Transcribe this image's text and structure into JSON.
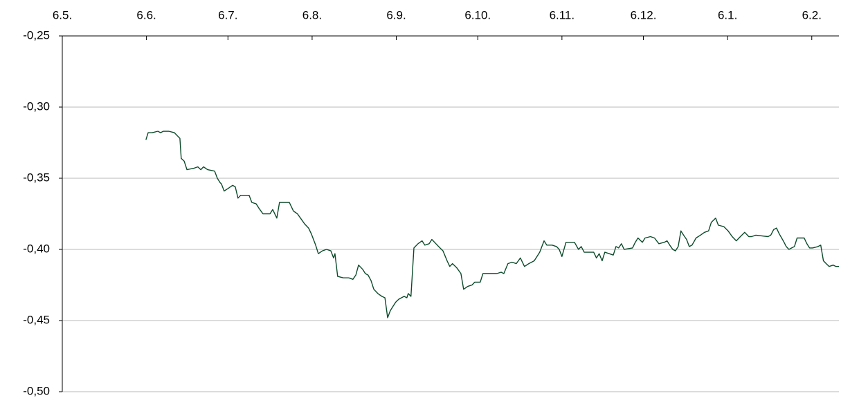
{
  "chart_data": {
    "type": "line",
    "x": [
      30.8,
      31.6,
      33.1,
      35.2,
      36.2,
      37.2,
      39.2,
      41.3,
      42.3,
      43.3,
      43.8,
      44.9,
      45.9,
      48.4,
      49.9,
      51.0,
      52.0,
      53.5,
      56.1,
      57.1,
      58.1,
      58.6,
      59.6,
      61.2,
      62.7,
      63.7,
      64.7,
      65.7,
      68.8,
      69.8,
      71.4,
      72.4,
      73.9,
      76.5,
      77.5,
      79.0,
      80.0,
      83.6,
      85.1,
      86.6,
      87.7,
      89.2,
      90.7,
      91.7,
      93.3,
      94.3,
      95.8,
      97.3,
      98.9,
      99.9,
      100.4,
      101.4,
      103.5,
      105.5,
      107.0,
      108.1,
      109.1,
      110.6,
      111.6,
      112.6,
      113.7,
      114.7,
      116.2,
      117.7,
      118.8,
      119.8,
      120.8,
      121.8,
      122.8,
      123.9,
      124.9,
      125.9,
      126.9,
      127.4,
      128.4,
      129.5,
      131.0,
      132.5,
      133.5,
      135.1,
      136.1,
      137.6,
      139.1,
      140.2,
      141.7,
      142.7,
      143.7,
      145.3,
      146.8,
      147.8,
      149.3,
      150.9,
      151.9,
      153.9,
      154.9,
      156.5,
      160.0,
      161.6,
      162.6,
      164.1,
      165.6,
      167.2,
      168.7,
      170.2,
      171.8,
      173.8,
      175.8,
      177.4,
      178.4,
      180.4,
      182.0,
      183.0,
      184.0,
      185.5,
      188.6,
      190.1,
      191.1,
      192.2,
      195.7,
      196.7,
      197.7,
      198.8,
      199.8,
      202.9,
      203.9,
      204.9,
      205.9,
      206.9,
      210.0,
      211.0,
      212.0,
      213.6,
      214.6,
      216.6,
      218.1,
      219.7,
      221.7,
      222.7,
      223.7,
      224.8,
      225.8,
      226.8,
      227.8,
      228.8,
      229.9,
      230.9,
      231.9,
      233.4,
      235.0,
      236.5,
      238.0,
      239.0,
      240.6,
      241.6,
      243.6,
      245.2,
      246.7,
      248.2,
      249.7,
      251.3,
      252.8,
      253.8,
      255.4,
      259.9,
      260.9,
      262.0,
      263.0,
      264.0,
      265.5,
      266.6,
      267.6,
      268.6,
      269.6,
      270.6,
      273.2,
      274.2,
      275.2,
      276.3,
      278.3,
      279.3,
      280.3,
      281.3,
      282.4,
      283.9,
      284.9,
      286.0
    ],
    "series": [
      {
        "color": "#0b4a2a",
        "values": [
          -0.323,
          -0.318,
          -0.318,
          -0.317,
          -0.318,
          -0.317,
          -0.317,
          -0.318,
          -0.32,
          -0.322,
          -0.336,
          -0.338,
          -0.344,
          -0.343,
          -0.342,
          -0.344,
          -0.342,
          -0.344,
          -0.345,
          -0.35,
          -0.353,
          -0.354,
          -0.359,
          -0.357,
          -0.355,
          -0.356,
          -0.364,
          -0.362,
          -0.362,
          -0.367,
          -0.368,
          -0.371,
          -0.375,
          -0.375,
          -0.372,
          -0.378,
          -0.367,
          -0.367,
          -0.373,
          -0.375,
          -0.378,
          -0.382,
          -0.385,
          -0.389,
          -0.397,
          -0.403,
          -0.401,
          -0.4,
          -0.401,
          -0.406,
          -0.403,
          -0.419,
          -0.42,
          -0.42,
          -0.421,
          -0.418,
          -0.411,
          -0.414,
          -0.417,
          -0.418,
          -0.422,
          -0.428,
          -0.431,
          -0.433,
          -0.434,
          -0.448,
          -0.443,
          -0.44,
          -0.437,
          -0.435,
          -0.434,
          -0.433,
          -0.434,
          -0.431,
          -0.433,
          -0.399,
          -0.396,
          -0.394,
          -0.397,
          -0.396,
          -0.393,
          -0.396,
          -0.399,
          -0.401,
          -0.408,
          -0.412,
          -0.41,
          -0.413,
          -0.417,
          -0.428,
          -0.426,
          -0.425,
          -0.423,
          -0.423,
          -0.417,
          -0.417,
          -0.417,
          -0.416,
          -0.417,
          -0.41,
          -0.409,
          -0.41,
          -0.406,
          -0.412,
          -0.41,
          -0.408,
          -0.402,
          -0.394,
          -0.397,
          -0.397,
          -0.398,
          -0.4,
          -0.405,
          -0.395,
          -0.395,
          -0.4,
          -0.398,
          -0.402,
          -0.402,
          -0.406,
          -0.403,
          -0.408,
          -0.402,
          -0.404,
          -0.398,
          -0.399,
          -0.396,
          -0.4,
          -0.399,
          -0.395,
          -0.392,
          -0.395,
          -0.392,
          -0.391,
          -0.392,
          -0.396,
          -0.395,
          -0.394,
          -0.397,
          -0.4,
          -0.401,
          -0.398,
          -0.387,
          -0.39,
          -0.393,
          -0.398,
          -0.397,
          -0.392,
          -0.39,
          -0.388,
          -0.387,
          -0.381,
          -0.378,
          -0.383,
          -0.384,
          -0.387,
          -0.391,
          -0.394,
          -0.391,
          -0.388,
          -0.391,
          -0.391,
          -0.39,
          -0.391,
          -0.39,
          -0.386,
          -0.385,
          -0.389,
          -0.394,
          -0.398,
          -0.4,
          -0.399,
          -0.398,
          -0.392,
          -0.392,
          -0.396,
          -0.399,
          -0.399,
          -0.398,
          -0.397,
          -0.408,
          -0.41,
          -0.412,
          -0.411,
          -0.412,
          -0.412
        ]
      }
    ],
    "xlim": [
      0,
      286
    ],
    "xticks": [
      {
        "value": 0,
        "label": "6.5."
      },
      {
        "value": 31,
        "label": "6.6."
      },
      {
        "value": 61,
        "label": "6.7."
      },
      {
        "value": 92,
        "label": "6.8."
      },
      {
        "value": 123,
        "label": "6.9."
      },
      {
        "value": 153,
        "label": "6.10."
      },
      {
        "value": 184,
        "label": "6.11."
      },
      {
        "value": 214,
        "label": "6.12."
      },
      {
        "value": 245,
        "label": "6.1."
      },
      {
        "value": 276,
        "label": "6.2."
      }
    ],
    "ylim": [
      -0.5,
      -0.25
    ],
    "yticks": [
      {
        "value": -0.25,
        "label": "-0,25"
      },
      {
        "value": -0.3,
        "label": "-0,30"
      },
      {
        "value": -0.35,
        "label": "-0,35"
      },
      {
        "value": -0.4,
        "label": "-0,40"
      },
      {
        "value": -0.45,
        "label": "-0,45"
      },
      {
        "value": -0.5,
        "label": "-0,50"
      }
    ],
    "grid": true,
    "x_axis_position": "top"
  }
}
